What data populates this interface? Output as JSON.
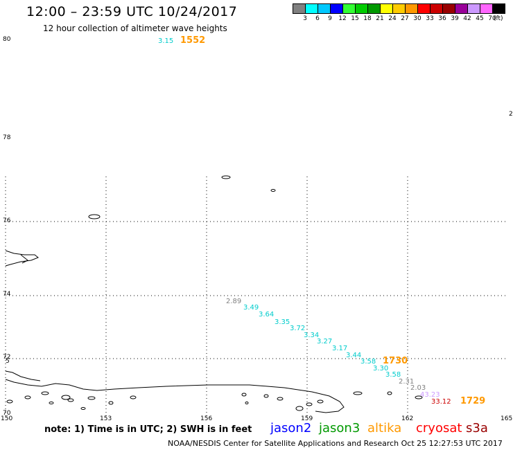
{
  "header": {
    "title": "12:00 – 23:59 UTC 10/24/2017",
    "subtitle": "12 hour collection of altimeter wave heights"
  },
  "colorbar": {
    "colors": [
      "#808080",
      "#00ffff",
      "#00c8ff",
      "#0000ff",
      "#33ff33",
      "#00cc00",
      "#009900",
      "#ffff00",
      "#ffcc00",
      "#ff9900",
      "#ff0000",
      "#cc0000",
      "#990000",
      "#990099",
      "#cc99ff",
      "#ff66ff",
      "#000000"
    ],
    "labels": [
      "3",
      "6",
      "9",
      "12",
      "15",
      "18",
      "21",
      "24",
      "27",
      "30",
      "33",
      "36",
      "39",
      "42",
      "45",
      "70"
    ],
    "units": "(ft)"
  },
  "map": {
    "x_ticks": [
      "150",
      "153",
      "156",
      "159",
      "162",
      "165"
    ],
    "y_ticks": [
      "80",
      "78",
      "76",
      "74",
      "72",
      "70"
    ],
    "edge_labels": [
      "2",
      "5"
    ]
  },
  "obs": [
    {
      "text": "3.15",
      "color": "#00cccc"
    },
    {
      "text": "1552",
      "color": "#ff9900"
    },
    {
      "text": "2.89",
      "color": "#808080"
    },
    {
      "text": "3.49",
      "color": "#00cccc"
    },
    {
      "text": "3.64",
      "color": "#00cccc"
    },
    {
      "text": "3.35",
      "color": "#00cccc"
    },
    {
      "text": "3.72",
      "color": "#00cccc"
    },
    {
      "text": "3.34",
      "color": "#00cccc"
    },
    {
      "text": "3.27",
      "color": "#00cccc"
    },
    {
      "text": "3.17",
      "color": "#00cccc"
    },
    {
      "text": "3.44",
      "color": "#00cccc"
    },
    {
      "text": "3.58",
      "color": "#00cccc"
    },
    {
      "text": "1730",
      "color": "#ff9900"
    },
    {
      "text": "3.30",
      "color": "#00cccc"
    },
    {
      "text": "3.58",
      "color": "#00cccc"
    },
    {
      "text": "2.31",
      "color": "#808080"
    },
    {
      "text": "2.03",
      "color": "#808080"
    },
    {
      "text": "43.23",
      "color": "#cc99ff"
    },
    {
      "text": "33.12",
      "color": "#cc0000"
    },
    {
      "text": "1729",
      "color": "#ff9900"
    }
  ],
  "footer": {
    "note": "note: 1) Time is in UTC; 2) SWH is in feet",
    "credit": "NOAA/NESDIS Center for Satellite Applications and Research    Oct 25 12:27:53 UTC 2017",
    "satellites": [
      {
        "name": "jason2",
        "color": "#0000ff"
      },
      {
        "name": "jason3",
        "color": "#009900"
      },
      {
        "name": "altika",
        "color": "#ff9900"
      },
      {
        "name": "cryosat",
        "color": "#ff0000"
      },
      {
        "name": "s3a",
        "color": "#990000"
      }
    ]
  }
}
